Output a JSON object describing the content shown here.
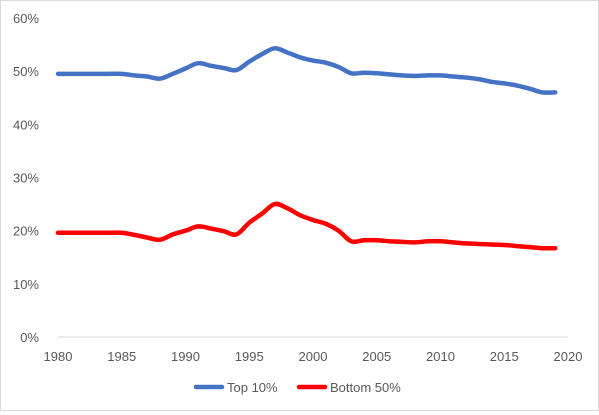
{
  "chart_data": {
    "type": "line",
    "title": "",
    "xlabel": "",
    "ylabel": "",
    "xlim": [
      1980,
      2020
    ],
    "ylim": [
      0,
      60
    ],
    "x_ticks": [
      1980,
      1985,
      1990,
      1995,
      2000,
      2005,
      2010,
      2015,
      2020
    ],
    "x_tick_labels": [
      "1980",
      "1985",
      "1990",
      "1995",
      "2000",
      "2005",
      "2010",
      "2015",
      "2020"
    ],
    "y_ticks": [
      0,
      10,
      20,
      30,
      40,
      50,
      60
    ],
    "y_tick_labels": [
      "0%",
      "10%",
      "20%",
      "30%",
      "40%",
      "50%",
      "60%"
    ],
    "grid": false,
    "legend_position": "bottom",
    "series": [
      {
        "name": "Top 10%",
        "color": "#4472c4",
        "x": [
          1980,
          1981,
          1982,
          1983,
          1984,
          1985,
          1986,
          1987,
          1988,
          1989,
          1990,
          1991,
          1992,
          1993,
          1994,
          1995,
          1996,
          1997,
          1998,
          1999,
          2000,
          2001,
          2002,
          2003,
          2004,
          2005,
          2006,
          2007,
          2008,
          2009,
          2010,
          2011,
          2012,
          2013,
          2014,
          2015,
          2016,
          2017,
          2018,
          2019
        ],
        "values": [
          49.5,
          49.5,
          49.5,
          49.5,
          49.5,
          49.5,
          49.2,
          49.0,
          48.6,
          49.5,
          50.5,
          51.5,
          51.0,
          50.6,
          50.2,
          51.8,
          53.2,
          54.3,
          53.5,
          52.6,
          52.0,
          51.6,
          50.8,
          49.6,
          49.7,
          49.6,
          49.4,
          49.2,
          49.1,
          49.2,
          49.2,
          49.0,
          48.8,
          48.5,
          48.0,
          47.7,
          47.3,
          46.7,
          46.0,
          46.0
        ]
      },
      {
        "name": "Bottom 50%",
        "color": "#ff0000",
        "x": [
          1980,
          1981,
          1982,
          1983,
          1984,
          1985,
          1986,
          1987,
          1988,
          1989,
          1990,
          1991,
          1992,
          1993,
          1994,
          1995,
          1996,
          1997,
          1998,
          1999,
          2000,
          2001,
          2002,
          2003,
          2004,
          2005,
          2006,
          2007,
          2008,
          2009,
          2010,
          2011,
          2012,
          2013,
          2014,
          2015,
          2016,
          2017,
          2018,
          2019
        ],
        "values": [
          19.6,
          19.6,
          19.6,
          19.6,
          19.6,
          19.6,
          19.2,
          18.7,
          18.3,
          19.3,
          20.0,
          20.8,
          20.4,
          19.9,
          19.3,
          21.5,
          23.2,
          25.0,
          24.2,
          22.9,
          22.0,
          21.3,
          20.0,
          18.0,
          18.2,
          18.2,
          18.0,
          17.9,
          17.8,
          18.0,
          18.0,
          17.8,
          17.6,
          17.5,
          17.4,
          17.3,
          17.1,
          16.9,
          16.7,
          16.7
        ]
      }
    ]
  }
}
